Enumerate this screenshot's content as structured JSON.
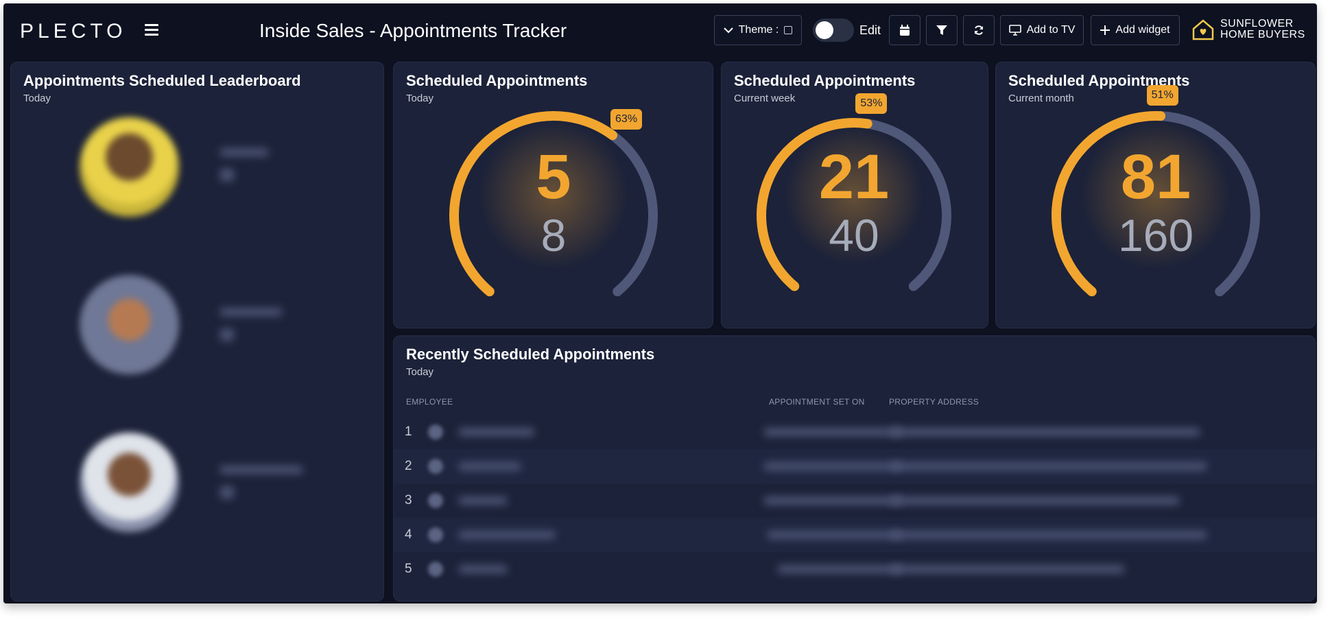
{
  "app": {
    "logo": "PLECTO",
    "page_title": "Inside Sales - Appointments Tracker"
  },
  "toolbar": {
    "theme_label": "Theme :",
    "edit_label": "Edit",
    "add_to_tv_label": "Add to TV",
    "add_widget_label": "Add widget",
    "brand_line1": "SUNFLOWER",
    "brand_line2": "HOME BUYERS"
  },
  "leaderboard": {
    "title": "Appointments Scheduled Leaderboard",
    "subtitle": "Today"
  },
  "gauges": [
    {
      "title": "Scheduled Appointments",
      "subtitle": "Today",
      "value": 5,
      "target": 8,
      "percent": 63,
      "percent_label": "63%"
    },
    {
      "title": "Scheduled Appointments",
      "subtitle": "Current week",
      "value": 21,
      "target": 40,
      "percent": 53,
      "percent_label": "53%"
    },
    {
      "title": "Scheduled Appointments",
      "subtitle": "Current month",
      "value": 81,
      "target": 160,
      "percent": 51,
      "percent_label": "51%"
    }
  ],
  "recent": {
    "title": "Recently Scheduled Appointments",
    "subtitle": "Today",
    "columns": {
      "employee": "EMPLOYEE",
      "set_on": "APPOINTMENT SET ON",
      "address": "PROPERTY ADDRESS"
    },
    "rows": [
      {
        "rank": "1"
      },
      {
        "rank": "2"
      },
      {
        "rank": "3"
      },
      {
        "rank": "4"
      },
      {
        "rank": "5"
      }
    ]
  },
  "colors": {
    "accent": "#f2a630",
    "track": "#4f5878",
    "card": "#1c2239",
    "background": "#0d1120"
  }
}
